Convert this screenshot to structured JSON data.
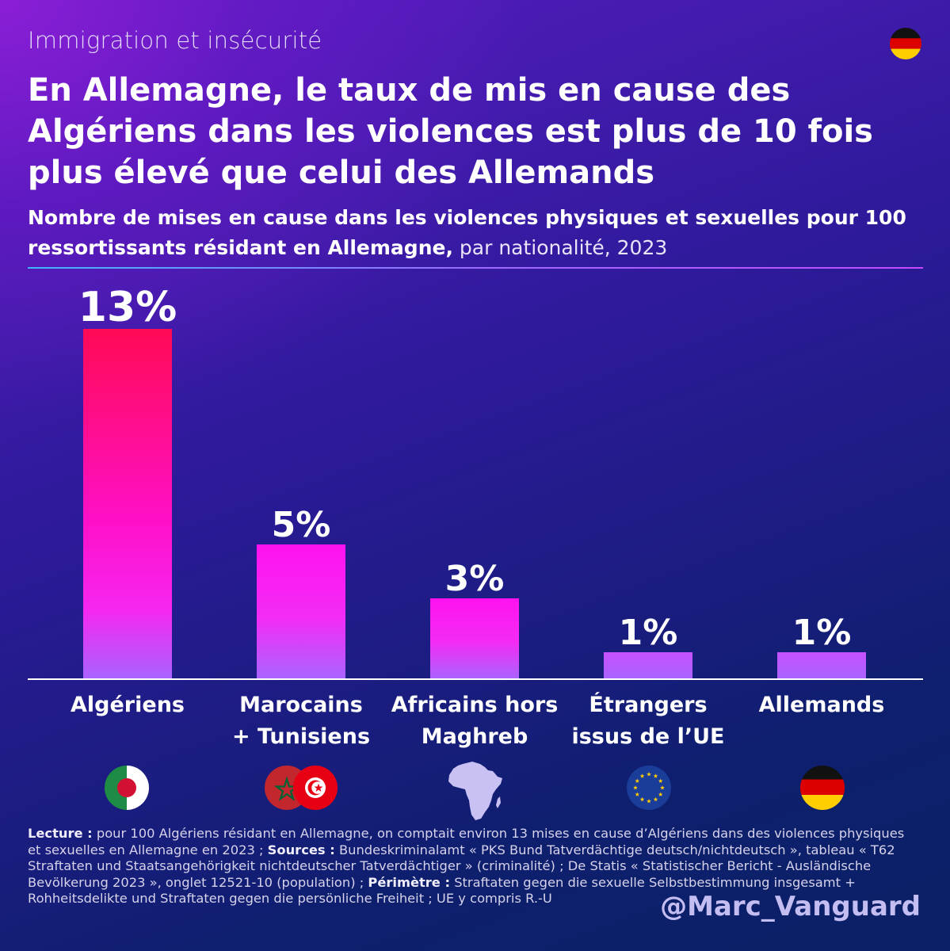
{
  "kicker": "Immigration et insécurité",
  "title": "En Allemagne, le taux de mis en cause des Algériens dans les violences est plus de 10 fois plus élevé que celui des Allemands",
  "subtitle_bold": "Nombre de mises en cause dans les violences physiques et sexuelles pour 100 ressortissants résidant en Allemagne,",
  "subtitle_light": " par nationalité, 2023",
  "chart_data": {
    "type": "bar",
    "title": "Nombre de mises en cause dans les violences physiques et sexuelles pour 100 ressortissants résidant en Allemagne, par nationalité, 2023",
    "categories": [
      "Algériens",
      "Marocains + Tunisiens",
      "Africains hors Maghreb",
      "Étrangers issus de l’UE",
      "Allemands"
    ],
    "category_lines": [
      [
        "Algériens"
      ],
      [
        "Marocains",
        "+ Tunisiens"
      ],
      [
        "Africains hors",
        "Maghreb"
      ],
      [
        "Étrangers",
        "issus de l’UE"
      ],
      [
        "Allemands"
      ]
    ],
    "values": [
      13,
      5,
      3,
      1,
      1
    ],
    "value_labels": [
      "13%",
      "5%",
      "3%",
      "1%",
      "1%"
    ],
    "unit": "%",
    "ylim": [
      0,
      13
    ],
    "xlabel": "",
    "ylabel": "",
    "grid": false,
    "legend": "none"
  },
  "icons": [
    "algeria-flag-icon",
    "morocco-tunisia-flags-icon",
    "africa-map-icon",
    "eu-flag-icon",
    "germany-flag-icon"
  ],
  "footnote": {
    "lecture_label": "Lecture :",
    "lecture_text": " pour 100 Algériens résidant en Allemagne, on comptait environ 13 mises en cause d’Algériens dans des violences physiques et sexuelles en Allemagne en 2023 ; ",
    "sources_label": "Sources :",
    "sources_text": " Bundeskriminalamt « PKS Bund Tatverdächtige deutsch/nichtdeutsch », tableau « T62 Straftaten und Staatsangehörigkeit nichtdeutscher Tatverdächtiger » (criminalité) ; De Statis « Statistischer Bericht - Ausländische Bevölkerung 2023 », onglet 12521-10 (population) ; ",
    "perimetre_label": "Périmètre :",
    "perimetre_text": " Straftaten gegen die sexuelle Selbstbestimmung insgesamt + Rohheitsdelikte und Straftaten gegen die persönliche Freiheit ; UE y compris R.-U"
  },
  "handle": "@Marc_Vanguard",
  "colors": {
    "bar_top_first": "#ff0a55",
    "bar_mid": "#ff10e8",
    "bar_bottom": "#a964ff",
    "axis": "#ffffff"
  }
}
